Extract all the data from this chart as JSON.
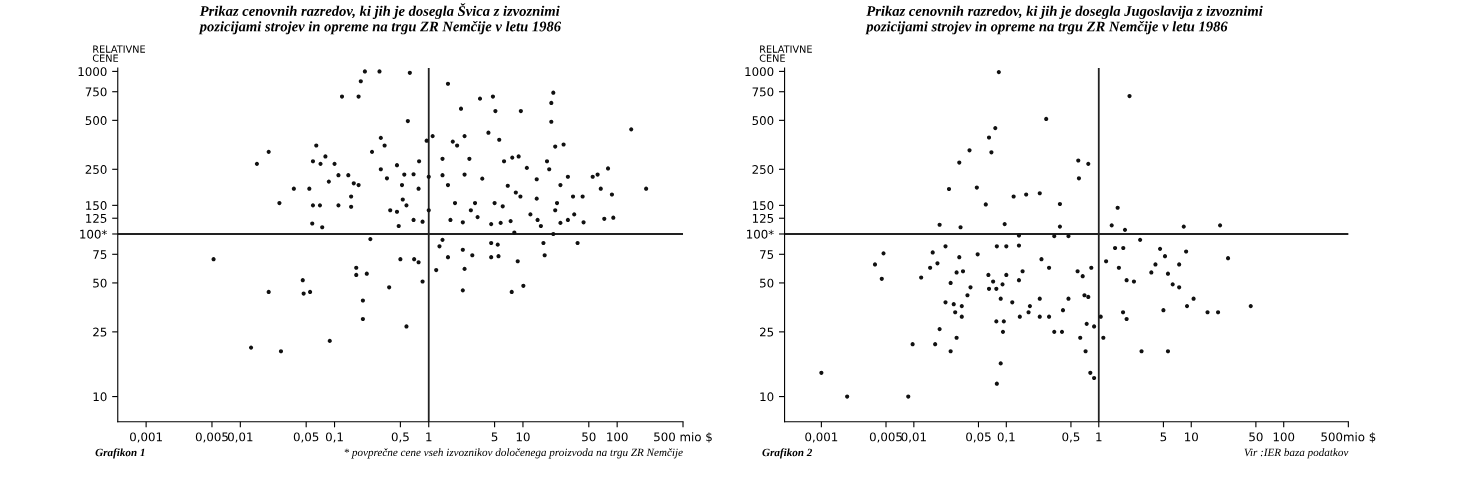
{
  "chart_data": [
    {
      "type": "scatter",
      "title": "Prikaz cenovnih razredov, ki jih je dosegla Švica z izvoznimi\npozicijami strojev in opreme na trgu ZR Nemčije v letu 1986",
      "ylabel": "RELATIVNE\nCENE",
      "log": "xy",
      "grid": false,
      "marker": "circle",
      "xlim": [
        0.0005,
        500
      ],
      "ylim": [
        7,
        1050
      ],
      "xticks": [
        {
          "value": 0.001,
          "label": "0,001"
        },
        {
          "value": 0.005,
          "label": "0,005"
        },
        {
          "value": 0.01,
          "label": "0,01"
        },
        {
          "value": 0.05,
          "label": "0,05"
        },
        {
          "value": 0.1,
          "label": "0,1"
        },
        {
          "value": 0.5,
          "label": "0,5"
        },
        1,
        5,
        10,
        50,
        100,
        {
          "value": 500,
          "label": "500 mio $"
        }
      ],
      "yticks": [
        10,
        25,
        50,
        75,
        {
          "value": 100,
          "label": "100*"
        },
        125,
        150,
        250,
        500,
        750,
        1000
      ],
      "ref_lines": [
        {
          "axis": "x",
          "value": 1
        },
        {
          "axis": "y",
          "value": 100
        }
      ],
      "annotations": [
        "Grafikon 1",
        "* povprečne cene vseh izvoznikov določenega proizvoda na trgu ZR Nemčije"
      ],
      "series": [
        {
          "color": "#111111",
          "x": [
            0.0052,
            0.013,
            0.015,
            0.02,
            0.02,
            0.026,
            0.027,
            0.037,
            0.046,
            0.047,
            0.055,
            0.054,
            0.059,
            0.058,
            0.064,
            0.059,
            0.071,
            0.07,
            0.074,
            0.08,
            0.087,
            0.089,
            0.1,
            0.11,
            0.11,
            0.12,
            0.14,
            0.15,
            0.15,
            0.16,
            0.17,
            0.17,
            0.18,
            0.18,
            0.19,
            0.2,
            0.2,
            0.21,
            0.22,
            0.24,
            0.25,
            0.3,
            0.31,
            0.31,
            0.34,
            0.36,
            0.38,
            0.39,
            0.46,
            0.46,
            0.48,
            0.5,
            0.52,
            0.53,
            0.55,
            0.58,
            0.6,
            0.58,
            0.63,
            0.69,
            0.7,
            0.69,
            0.78,
            0.78,
            0.79,
            0.95,
            1.0,
            1.0,
            1.1,
            0.86,
            0.86,
            1.2,
            1.3,
            1.4,
            1.4,
            1.4,
            1.6,
            1.6,
            1.7,
            1.8,
            2.0,
            2.2,
            2.3,
            2.3,
            2.4,
            2.4,
            2.4,
            2.7,
            2.9,
            3.1,
            3.5,
            3.7,
            4.3,
            4.8,
            4.6,
            4.6,
            5.1,
            5.4,
            5.6,
            5.5,
            6.1,
            6.3,
            7.6,
            7.7,
            8.1,
            8.8,
            9.0,
            9.5,
            9.4,
            10.1,
            11,
            14,
            14.3,
            16.5,
            17,
            19,
            20,
            21,
            20,
            21,
            22,
            23,
            25,
            27,
            30,
            34,
            38,
            43,
            44,
            55,
            62,
            67,
            73,
            80,
            88,
            91,
            141,
            203,
            1.6,
            1.9,
            2.3,
            2.8,
            3.3,
            4.6,
            5.8,
            7.4,
            5.0,
            6.9,
            8.4,
            12,
            14,
            15.5,
            18,
            22,
            25,
            30,
            35
          ],
          "values": [
            70,
            20,
            270,
            320,
            44,
            155,
            19,
            190,
            52,
            43,
            44,
            190,
            150,
            116,
            350,
            280,
            270,
            150,
            110,
            300,
            210,
            22,
            270,
            150,
            230,
            700,
            230,
            170,
            147,
            205,
            62,
            56,
            700,
            200,
            870,
            39,
            30,
            1000,
            57,
            93,
            320,
            1000,
            390,
            250,
            350,
            220,
            47,
            140,
            137,
            265,
            112,
            70,
            200,
            163,
            232,
            150,
            495,
            27,
            980,
            233,
            70,
            122,
            190,
            67,
            280,
            375,
            225,
            140,
            400,
            119,
            51,
            60,
            84,
            92,
            290,
            230,
            840,
            72,
            122,
            370,
            350,
            590,
            45,
            80,
            400,
            61,
            232,
            290,
            74,
            155,
            680,
            219,
            420,
            700,
            88,
            72,
            570,
            86,
            380,
            73,
            148,
            280,
            44,
            295,
            102,
            68,
            300,
            570,
            170,
            48,
            255,
            217,
            122,
            88,
            74,
            250,
            640,
            740,
            490,
            100,
            345,
            155,
            200,
            355,
            122,
            170,
            88,
            170,
            118,
            225,
            232,
            190,
            124,
            253,
            175,
            126,
            440,
            190,
            200,
            155,
            118,
            140,
            127,
            115,
            117,
            120,
            155,
            198,
            180,
            132,
            165,
            112,
            280,
            140,
            117,
            225,
            132
          ]
        }
      ]
    },
    {
      "type": "scatter",
      "title": "Prikaz cenovnih razredov, ki jih je dosegla Jugoslavija z izvoznimi\npozicijami strojev in opreme na trgu ZR Nemčije v letu 1986",
      "ylabel": "RELATIVNE\nCENE",
      "log": "xy",
      "grid": false,
      "marker": "circle",
      "xlim": [
        0.0004,
        500
      ],
      "ylim": [
        7,
        1050
      ],
      "xticks": [
        {
          "value": 0.001,
          "label": "0,001"
        },
        {
          "value": 0.005,
          "label": "0,005"
        },
        {
          "value": 0.01,
          "label": "0,01"
        },
        {
          "value": 0.05,
          "label": "0,05"
        },
        {
          "value": 0.1,
          "label": "0,1"
        },
        {
          "value": 0.5,
          "label": "0,5"
        },
        1,
        5,
        10,
        50,
        100,
        {
          "value": 500,
          "label": "500mio $"
        }
      ],
      "yticks": [
        10,
        25,
        50,
        75,
        {
          "value": 100,
          "label": "100*"
        },
        125,
        150,
        250,
        500,
        750,
        1000
      ],
      "ref_lines": [
        {
          "axis": "x",
          "value": 1
        },
        {
          "axis": "y",
          "value": 100
        }
      ],
      "annotations": [
        "Grafikon 2",
        "Vir :IER baza podatkov"
      ],
      "series": [
        {
          "color": "#111111",
          "x": [
            0.001,
            0.0019,
            0.0038,
            0.0045,
            0.0047,
            0.0087,
            0.0097,
            0.012,
            0.015,
            0.016,
            0.017,
            0.018,
            0.019,
            0.019,
            0.022,
            0.022,
            0.024,
            0.025,
            0.025,
            0.027,
            0.028,
            0.029,
            0.031,
            0.031,
            0.032,
            0.029,
            0.034,
            0.033,
            0.033,
            0.038,
            0.04,
            0.041,
            0.048,
            0.049,
            0.06,
            0.064,
            0.065,
            0.065,
            0.069,
            0.072,
            0.076,
            0.078,
            0.078,
            0.079,
            0.083,
            0.079,
            0.087,
            0.087,
            0.091,
            0.092,
            0.096,
            0.094,
            0.1,
            0.1,
            0.116,
            0.12,
            0.137,
            0.14,
            0.137,
            0.137,
            0.15,
            0.164,
            0.174,
            0.18,
            0.23,
            0.23,
            0.23,
            0.24,
            0.27,
            0.29,
            0.29,
            0.38,
            0.38,
            0.33,
            0.6,
            0.61,
            0.77,
            0.47,
            0.41,
            0.47,
            0.33,
            0.4,
            0.59,
            0.63,
            0.67,
            0.7,
            0.72,
            0.77,
            0.74,
            0.81,
            0.83,
            0.89,
            0.89,
            1.05,
            1.12,
            1.2,
            1.38,
            1.6,
            1.5,
            1.65,
            1.84,
            1.92,
            1.83,
            2.0,
            2.15,
            2.0,
            2.4,
            2.8,
            2.9,
            3.7,
            4.1,
            4.6,
            5.0,
            5.2,
            5.6,
            5.6,
            6.3,
            7.4,
            7.4,
            8.3,
            8.8,
            9.0,
            10.6,
            15,
            19.5,
            20.5,
            25,
            44
          ],
          "values": [
            14,
            10,
            65,
            53,
            76,
            10,
            21,
            54,
            62,
            77,
            21,
            66,
            114,
            26,
            38,
            84,
            189,
            50,
            19,
            37,
            33,
            23,
            275,
            72,
            110,
            58,
            59,
            36,
            31,
            42,
            327,
            47,
            193,
            75,
            152,
            56,
            392,
            46,
            318,
            51,
            448,
            46,
            29,
            84,
            990,
            12,
            16,
            40,
            49,
            25,
            115,
            29,
            84,
            56,
            38,
            170,
            52,
            31,
            85,
            98,
            59,
            175,
            33,
            36,
            40,
            178,
            31,
            70,
            510,
            31,
            62,
            153,
            111,
            97,
            283,
            220,
            270,
            97,
            34,
            40,
            25,
            25,
            59,
            23,
            55,
            42,
            19,
            41,
            28,
            14,
            62,
            27,
            13,
            31,
            23,
            68,
            113,
            145,
            82,
            62,
            82,
            106,
            33,
            52,
            705,
            30,
            51,
            92,
            19,
            58,
            65,
            81,
            34,
            73,
            57,
            19,
            49,
            65,
            47,
            111,
            78,
            36,
            40,
            33,
            33,
            113,
            71,
            36
          ]
        }
      ]
    }
  ]
}
